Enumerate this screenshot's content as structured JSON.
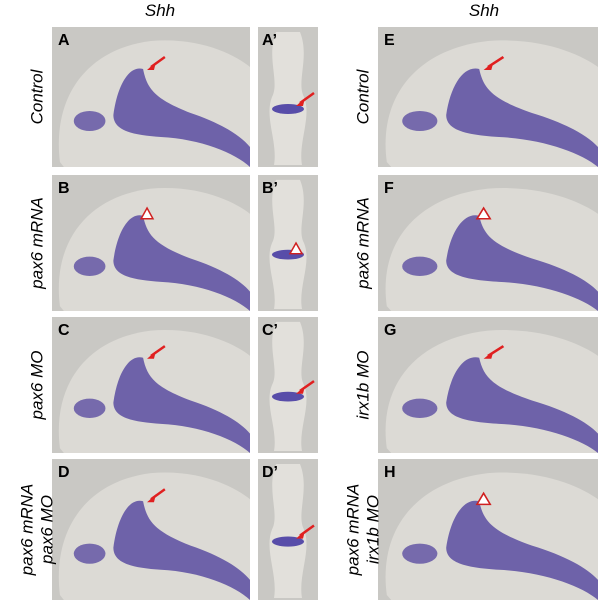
{
  "headers": [
    "Shh",
    "Shh"
  ],
  "left_panels": [
    {
      "letter": "A",
      "prime": "A’"
    },
    {
      "letter": "B",
      "prime": "B’"
    },
    {
      "letter": "C",
      "prime": "C’"
    },
    {
      "letter": "D",
      "prime": "D’"
    }
  ],
  "right_panels": [
    {
      "letter": "E"
    },
    {
      "letter": "F"
    },
    {
      "letter": "G"
    },
    {
      "letter": "H"
    }
  ],
  "left_rows": [
    [
      "Control"
    ],
    [
      "pax6 mRNA"
    ],
    [
      "pax6 MO"
    ],
    [
      "pax6 mRNA",
      "pax6 MO"
    ]
  ],
  "right_rows": [
    [
      "Control"
    ],
    [
      "pax6 mRNA"
    ],
    [
      "irx1b MO"
    ],
    [
      "pax6 mRNA",
      "irx1b MO"
    ]
  ]
}
